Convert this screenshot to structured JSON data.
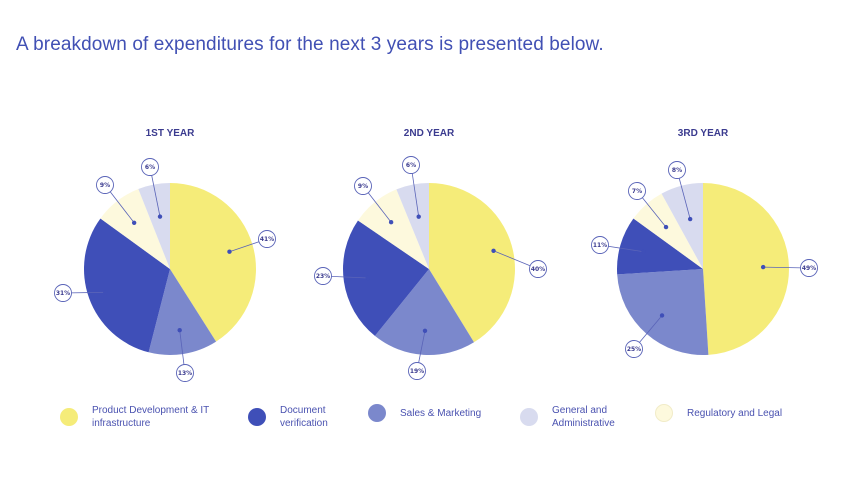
{
  "headline": "A breakdown of expenditures for the next 3 years is presented below.",
  "colors": {
    "product": "#f5ec79",
    "document": "#3f4fb8",
    "sales": "#7b88cc",
    "general": "#d8dbef",
    "regulatory": "#fdf9dd",
    "label": "#3b3b8f"
  },
  "legend": [
    {
      "key": "product",
      "label": "Product Development & IT infrastructure"
    },
    {
      "key": "document",
      "label": "Document verification"
    },
    {
      "key": "sales",
      "label": "Sales & Marketing"
    },
    {
      "key": "general",
      "label": "General and Administrative"
    },
    {
      "key": "regulatory",
      "label": "Regulatory and Legal"
    }
  ],
  "chart_data": [
    {
      "type": "pie",
      "title": "1ST YEAR",
      "slices": [
        {
          "key": "product",
          "value": 41,
          "label": "41%"
        },
        {
          "key": "sales",
          "value": 13,
          "label": "13%"
        },
        {
          "key": "document",
          "value": 31,
          "label": "31%"
        },
        {
          "key": "regulatory",
          "value": 9,
          "label": "9%"
        },
        {
          "key": "general",
          "value": 6,
          "label": "6%"
        }
      ]
    },
    {
      "type": "pie",
      "title": "2ND YEAR",
      "slices": [
        {
          "key": "product",
          "value": 40,
          "label": "40%"
        },
        {
          "key": "sales",
          "value": 19,
          "label": "19%"
        },
        {
          "key": "document",
          "value": 23,
          "label": "23%"
        },
        {
          "key": "regulatory",
          "value": 9,
          "label": "9%"
        },
        {
          "key": "general",
          "value": 6,
          "label": "6%"
        }
      ]
    },
    {
      "type": "pie",
      "title": "3RD YEAR",
      "slices": [
        {
          "key": "product",
          "value": 49,
          "label": "49%"
        },
        {
          "key": "sales",
          "value": 25,
          "label": "25%"
        },
        {
          "key": "document",
          "value": 11,
          "label": "11%"
        },
        {
          "key": "regulatory",
          "value": 7,
          "label": "7%"
        },
        {
          "key": "general",
          "value": 8,
          "label": "8%"
        }
      ]
    }
  ]
}
